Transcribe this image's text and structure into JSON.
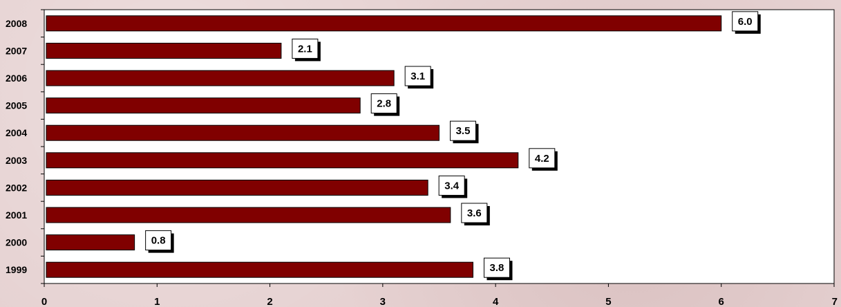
{
  "chart_data": {
    "type": "bar",
    "orientation": "horizontal",
    "categories": [
      "1999",
      "2000",
      "2001",
      "2002",
      "2003",
      "2004",
      "2005",
      "2006",
      "2007",
      "2008"
    ],
    "values": [
      3.8,
      0.8,
      3.6,
      3.4,
      4.2,
      3.5,
      2.8,
      3.1,
      2.1,
      6.0
    ],
    "data_labels": [
      "3.8",
      "0.8",
      "3.6",
      "3.4",
      "4.2",
      "3.5",
      "2.8",
      "3.1",
      "2.1",
      "6.0"
    ],
    "xlim": [
      0,
      7
    ],
    "x_ticks": [
      "0",
      "1",
      "2",
      "3",
      "4",
      "5",
      "6",
      "7"
    ],
    "grid": false,
    "legend": "none",
    "colors": {
      "bar": "#800000",
      "plot_background": "#ffffff",
      "label_box": "#ffffff",
      "label_shadow": "#000000"
    }
  }
}
